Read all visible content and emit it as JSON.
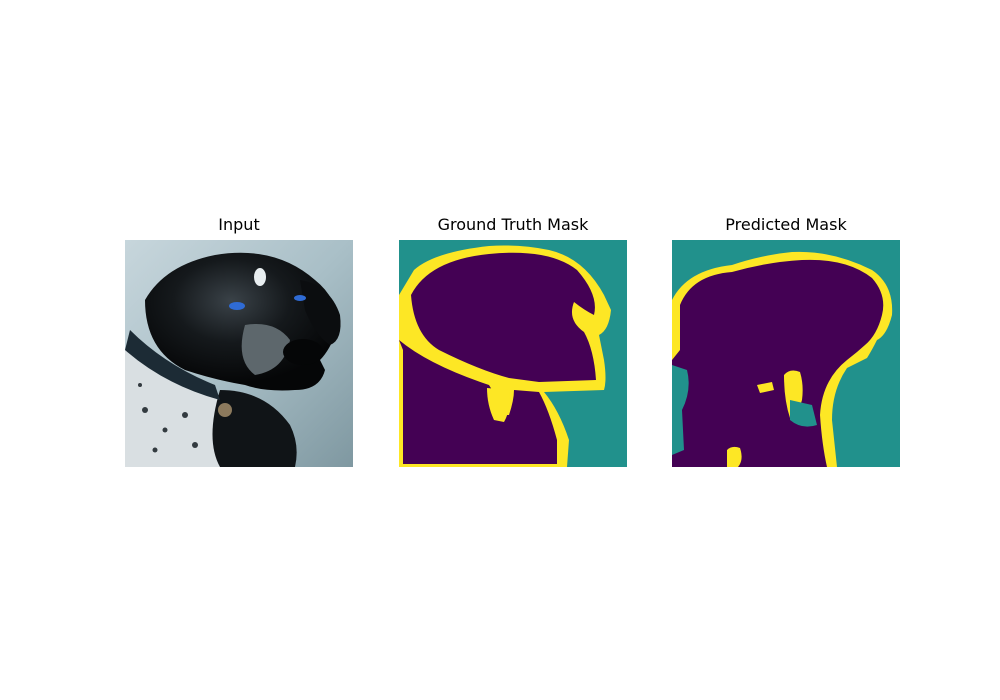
{
  "figure": {
    "panels": [
      {
        "title": "Input"
      },
      {
        "title": "Ground Truth Mask"
      },
      {
        "title": "Predicted Mask"
      }
    ]
  },
  "colors": {
    "mask_background": "#21918c",
    "mask_object": "#440154",
    "mask_boundary": "#fde725"
  }
}
